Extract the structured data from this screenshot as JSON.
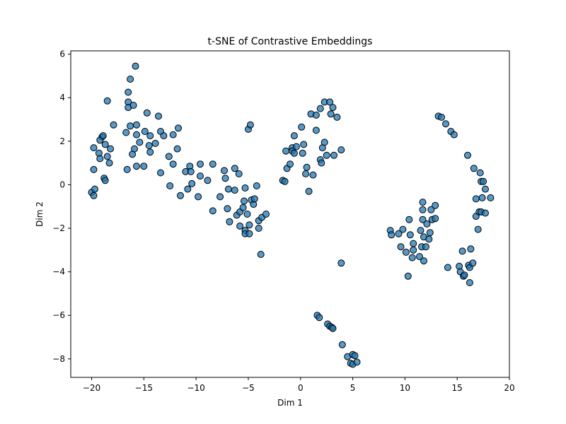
{
  "chart_data": {
    "type": "scatter",
    "title": "t-SNE of Contrastive Embeddings",
    "xlabel": "Dim 1",
    "ylabel": "Dim 2",
    "xlim": [
      -22,
      20
    ],
    "ylim": [
      -8.85,
      6.15
    ],
    "xticks": [
      -20,
      -15,
      -10,
      -5,
      0,
      5,
      10,
      15,
      20
    ],
    "yticks": [
      -8,
      -6,
      -4,
      -2,
      0,
      2,
      4,
      6
    ],
    "grid": false,
    "marker_color": "#1f77b4",
    "marker_edge_color": "#000000",
    "points": [
      [
        -20.0,
        -0.35
      ],
      [
        -19.8,
        -0.5
      ],
      [
        -19.7,
        -0.2
      ],
      [
        -19.8,
        0.7
      ],
      [
        -19.8,
        1.7
      ],
      [
        -19.3,
        1.45
      ],
      [
        -19.2,
        1.2
      ],
      [
        -19.0,
        2.2
      ],
      [
        -19.2,
        2.05
      ],
      [
        -18.9,
        2.25
      ],
      [
        -18.8,
        0.3
      ],
      [
        -18.7,
        0.2
      ],
      [
        -18.7,
        1.85
      ],
      [
        -18.5,
        1.3
      ],
      [
        -18.3,
        1.0
      ],
      [
        -18.2,
        1.65
      ],
      [
        -18.5,
        3.85
      ],
      [
        -17.9,
        2.75
      ],
      [
        -16.6,
        0.7
      ],
      [
        -16.7,
        2.4
      ],
      [
        -16.5,
        4.25
      ],
      [
        -16.5,
        3.8
      ],
      [
        -16.5,
        3.55
      ],
      [
        -16.3,
        4.85
      ],
      [
        -16.3,
        2.7
      ],
      [
        -16.1,
        1.4
      ],
      [
        -15.9,
        1.65
      ],
      [
        -16.0,
        3.65
      ],
      [
        -15.8,
        5.45
      ],
      [
        -15.7,
        2.75
      ],
      [
        -15.7,
        2.3
      ],
      [
        -15.7,
        0.85
      ],
      [
        -15.4,
        1.95
      ],
      [
        -15.0,
        0.85
      ],
      [
        -14.9,
        2.45
      ],
      [
        -14.7,
        3.3
      ],
      [
        -14.5,
        1.8
      ],
      [
        -14.4,
        2.25
      ],
      [
        -14.4,
        1.5
      ],
      [
        -13.9,
        1.9
      ],
      [
        -13.6,
        3.15
      ],
      [
        -13.4,
        2.45
      ],
      [
        -13.4,
        0.55
      ],
      [
        -13.1,
        2.25
      ],
      [
        -12.6,
        1.3
      ],
      [
        -12.5,
        -0.05
      ],
      [
        -12.2,
        2.3
      ],
      [
        -12.2,
        0.95
      ],
      [
        -11.8,
        1.65
      ],
      [
        -11.7,
        2.6
      ],
      [
        -11.5,
        -0.5
      ],
      [
        -11.0,
        0.6
      ],
      [
        -10.8,
        -0.2
      ],
      [
        -10.6,
        0.85
      ],
      [
        -10.5,
        0.6
      ],
      [
        -10.4,
        0.05
      ],
      [
        -9.8,
        -0.55
      ],
      [
        -9.6,
        0.4
      ],
      [
        -9.6,
        0.95
      ],
      [
        -8.9,
        0.2
      ],
      [
        -8.4,
        0.95
      ],
      [
        -8.4,
        -1.2
      ],
      [
        -7.7,
        -0.55
      ],
      [
        -7.3,
        0.65
      ],
      [
        -7.2,
        0.3
      ],
      [
        -7.0,
        -1.1
      ],
      [
        -6.9,
        -0.2
      ],
      [
        -6.8,
        -1.7
      ],
      [
        -6.3,
        0.75
      ],
      [
        -6.3,
        -0.25
      ],
      [
        -6.1,
        -1.4
      ],
      [
        -5.9,
        0.5
      ],
      [
        -5.8,
        -1.25
      ],
      [
        -5.8,
        -1.9
      ],
      [
        -5.5,
        -1.05
      ],
      [
        -5.4,
        -0.75
      ],
      [
        -5.3,
        -2.1
      ],
      [
        -5.3,
        -2.25
      ],
      [
        -5.3,
        -0.15
      ],
      [
        -5.1,
        -1.35
      ],
      [
        -5.0,
        2.55
      ],
      [
        -4.9,
        -1.85
      ],
      [
        -4.9,
        -2.25
      ],
      [
        -4.8,
        2.75
      ],
      [
        -4.7,
        -0.7
      ],
      [
        -4.5,
        -0.9
      ],
      [
        -4.4,
        -0.65
      ],
      [
        -4.2,
        -0.05
      ],
      [
        -4.0,
        -2.0
      ],
      [
        -4.0,
        -1.65
      ],
      [
        -3.8,
        -3.2
      ],
      [
        -3.7,
        -1.5
      ],
      [
        -3.3,
        -1.35
      ],
      [
        -1.7,
        0.2
      ],
      [
        -1.5,
        0.15
      ],
      [
        -1.4,
        1.55
      ],
      [
        -1.3,
        0.75
      ],
      [
        -1.0,
        0.95
      ],
      [
        -0.8,
        1.7
      ],
      [
        -0.8,
        1.55
      ],
      [
        -0.6,
        2.25
      ],
      [
        -0.6,
        1.45
      ],
      [
        -0.4,
        1.75
      ],
      [
        0.1,
        2.65
      ],
      [
        0.2,
        1.45
      ],
      [
        0.3,
        1.85
      ],
      [
        0.5,
        0.5
      ],
      [
        0.6,
        0.8
      ],
      [
        0.8,
        -0.3
      ],
      [
        1.0,
        3.25
      ],
      [
        1.2,
        0.45
      ],
      [
        1.5,
        3.2
      ],
      [
        1.5,
        2.5
      ],
      [
        1.9,
        3.5
      ],
      [
        1.9,
        1.15
      ],
      [
        2.0,
        1.0
      ],
      [
        2.1,
        1.7
      ],
      [
        2.3,
        3.8
      ],
      [
        2.3,
        1.95
      ],
      [
        2.5,
        1.35
      ],
      [
        2.8,
        3.8
      ],
      [
        2.9,
        3.25
      ],
      [
        3.1,
        3.55
      ],
      [
        3.2,
        1.35
      ],
      [
        3.5,
        3.1
      ],
      [
        3.9,
        1.6
      ],
      [
        1.6,
        -6.0
      ],
      [
        1.8,
        -6.1
      ],
      [
        2.6,
        -6.4
      ],
      [
        2.8,
        -6.5
      ],
      [
        3.0,
        -6.55
      ],
      [
        3.1,
        -6.6
      ],
      [
        3.9,
        -3.6
      ],
      [
        4.0,
        -7.35
      ],
      [
        4.5,
        -7.9
      ],
      [
        4.8,
        -8.2
      ],
      [
        5.0,
        -8.25
      ],
      [
        5.0,
        -7.8
      ],
      [
        5.2,
        -7.85
      ],
      [
        5.4,
        -8.15
      ],
      [
        8.6,
        -2.1
      ],
      [
        8.7,
        -2.3
      ],
      [
        9.4,
        -2.25
      ],
      [
        9.6,
        -2.85
      ],
      [
        9.8,
        -2.05
      ],
      [
        10.1,
        -3.1
      ],
      [
        10.3,
        -4.2
      ],
      [
        10.4,
        -1.6
      ],
      [
        10.5,
        -2.3
      ],
      [
        10.7,
        -3.35
      ],
      [
        10.8,
        -2.7
      ],
      [
        10.8,
        -3.0
      ],
      [
        11.4,
        -3.3
      ],
      [
        11.5,
        -2.1
      ],
      [
        11.6,
        -2.85
      ],
      [
        11.7,
        -1.15
      ],
      [
        11.7,
        -0.8
      ],
      [
        11.7,
        -1.6
      ],
      [
        11.8,
        -3.5
      ],
      [
        11.8,
        -2.4
      ],
      [
        12.0,
        -2.85
      ],
      [
        12.1,
        -1.8
      ],
      [
        12.3,
        -2.5
      ],
      [
        12.4,
        -2.2
      ],
      [
        12.5,
        -1.15
      ],
      [
        12.6,
        -1.6
      ],
      [
        12.9,
        -0.95
      ],
      [
        12.9,
        -1.55
      ],
      [
        13.2,
        3.15
      ],
      [
        13.5,
        3.1
      ],
      [
        13.9,
        2.8
      ],
      [
        14.1,
        -3.8
      ],
      [
        14.4,
        2.45
      ],
      [
        14.7,
        2.3
      ],
      [
        15.2,
        -3.75
      ],
      [
        15.3,
        -4.0
      ],
      [
        15.5,
        -3.05
      ],
      [
        15.6,
        -4.2
      ],
      [
        15.7,
        -4.15
      ],
      [
        16.0,
        1.35
      ],
      [
        16.1,
        -3.7
      ],
      [
        16.2,
        -3.8
      ],
      [
        16.2,
        -4.5
      ],
      [
        16.3,
        -2.95
      ],
      [
        16.5,
        -3.6
      ],
      [
        16.6,
        0.75
      ],
      [
        16.8,
        -1.45
      ],
      [
        16.8,
        -0.65
      ],
      [
        17.0,
        -2.05
      ],
      [
        17.1,
        -1.25
      ],
      [
        17.2,
        0.55
      ],
      [
        17.3,
        -1.25
      ],
      [
        17.3,
        0.15
      ],
      [
        17.4,
        -0.6
      ],
      [
        17.5,
        0.15
      ],
      [
        17.7,
        -1.3
      ],
      [
        17.7,
        -0.2
      ],
      [
        18.2,
        -0.6
      ]
    ]
  }
}
